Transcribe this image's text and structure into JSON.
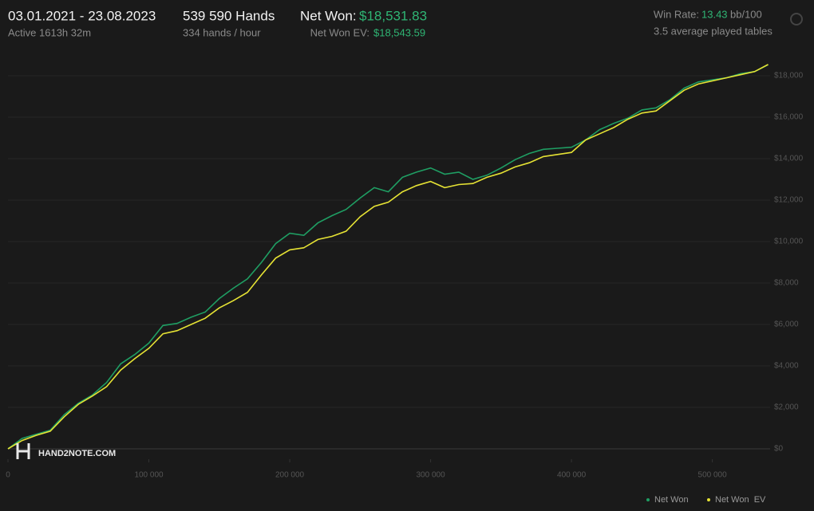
{
  "header": {
    "date_range": "03.01.2021 - 23.08.2023",
    "active": "Active 1613h 32m",
    "hands": "539 590 Hands",
    "hands_per_hour": "334 hands / hour",
    "net_won_label": "Net Won:",
    "net_won_value": "$18,531.83",
    "net_won_ev_label": "Net Won  EV:",
    "net_won_ev_value": "$18,543.59",
    "win_rate_label": "Win Rate:",
    "win_rate_value": "13.43",
    "win_rate_unit": "bb/100",
    "tables": "3.5 average played tables",
    "logo": "HAND2NOTE.COM"
  },
  "chart_data": {
    "type": "line",
    "x": [
      0,
      10000,
      20000,
      30000,
      40000,
      50000,
      60000,
      70000,
      80000,
      90000,
      100000,
      110000,
      120000,
      130000,
      140000,
      150000,
      160000,
      170000,
      180000,
      190000,
      200000,
      210000,
      220000,
      230000,
      240000,
      250000,
      260000,
      270000,
      280000,
      290000,
      300000,
      310000,
      320000,
      330000,
      340000,
      350000,
      360000,
      370000,
      380000,
      390000,
      400000,
      410000,
      420000,
      430000,
      440000,
      450000,
      460000,
      470000,
      480000,
      490000,
      500000,
      510000,
      520000,
      530000,
      539590
    ],
    "series": [
      {
        "name": "Net Won",
        "color": "#1f9e63",
        "values": [
          0,
          500,
          700,
          900,
          1650,
          2200,
          2600,
          3200,
          4100,
          4550,
          5100,
          5950,
          6050,
          6350,
          6600,
          7250,
          7750,
          8200,
          9000,
          9900,
          10400,
          10300,
          10900,
          11250,
          11550,
          12100,
          12600,
          12400,
          13100,
          13350,
          13550,
          13250,
          13350,
          13000,
          13200,
          13550,
          13950,
          14250,
          14450,
          14500,
          14550,
          14900,
          15400,
          15700,
          15950,
          16350,
          16450,
          16850,
          17400,
          17700,
          17800,
          17900,
          18100,
          18200,
          18531.83
        ]
      },
      {
        "name": "Net Won  EV",
        "color": "#e5e234",
        "values": [
          0,
          400,
          650,
          850,
          1550,
          2150,
          2550,
          3000,
          3800,
          4350,
          4850,
          5550,
          5700,
          6000,
          6300,
          6800,
          7150,
          7550,
          8400,
          9200,
          9600,
          9700,
          10100,
          10250,
          10500,
          11200,
          11700,
          11900,
          12400,
          12700,
          12900,
          12600,
          12750,
          12800,
          13100,
          13300,
          13600,
          13800,
          14100,
          14200,
          14300,
          14900,
          15200,
          15500,
          15900,
          16200,
          16300,
          16800,
          17300,
          17600,
          17750,
          17900,
          18050,
          18200,
          18543.59
        ]
      }
    ],
    "xlim": [
      0,
      541000
    ],
    "ylim": [
      -500,
      19000
    ],
    "xticks": [
      0,
      {
        "value": 100000,
        "label": "100 000"
      },
      {
        "value": 200000,
        "label": "200 000"
      },
      {
        "value": 300000,
        "label": "300 000"
      },
      {
        "value": 400000,
        "label": "400 000"
      },
      {
        "value": 500000,
        "label": "500 000"
      }
    ],
    "yticks": [
      {
        "value": 0,
        "label": "$0"
      },
      {
        "value": 2000,
        "label": "$2,000"
      },
      {
        "value": 4000,
        "label": "$4,000"
      },
      {
        "value": 6000,
        "label": "$6,000"
      },
      {
        "value": 8000,
        "label": "$8,000"
      },
      {
        "value": 10000,
        "label": "$10,000"
      },
      {
        "value": 12000,
        "label": "$12,000"
      },
      {
        "value": 14000,
        "label": "$14,000"
      },
      {
        "value": 16000,
        "label": "$16,000"
      },
      {
        "value": 18000,
        "label": "$18,000"
      }
    ],
    "grid": true
  }
}
